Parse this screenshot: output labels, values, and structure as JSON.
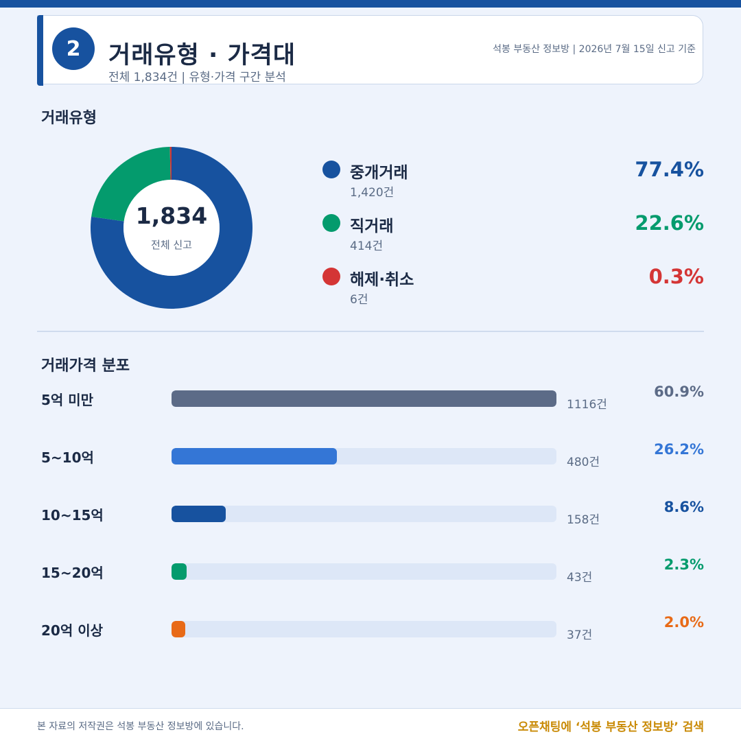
{
  "header": {
    "badge_number": "2",
    "title": "거래유형 · 가격대",
    "subtitle": "전체 1,834건 | 유형·가격 구간 분석",
    "source": "석봉 부동산 정보방 | 2026년 7월 15일 신고 기준"
  },
  "colors": {
    "primary": "#17529f",
    "green": "#049b6d",
    "red": "#d43535",
    "slate": "#5c6b87",
    "blue_mid": "#3476d6",
    "orange": "#e86a17",
    "gold": "#c98a05"
  },
  "chart_data": [
    {
      "type": "pie",
      "title": "거래유형",
      "center_value": "1,834",
      "center_label": "전체 신고",
      "slices": [
        {
          "name": "중개거래",
          "count": 1420,
          "count_label": "1,420건",
          "percent": 77.4,
          "percent_label": "77.4%",
          "color": "#17529f"
        },
        {
          "name": "직거래",
          "count": 414,
          "count_label": "414건",
          "percent": 22.6,
          "percent_label": "22.6%",
          "color": "#049b6d"
        },
        {
          "name": "해제·취소",
          "count": 6,
          "count_label": "6건",
          "percent": 0.3,
          "percent_label": "0.3%",
          "color": "#d43535"
        }
      ]
    },
    {
      "type": "bar",
      "title": "거래가격 분포",
      "categories": [
        "5억 미만",
        "5~10억",
        "10~15억",
        "15~20억",
        "20억 이상"
      ],
      "values": [
        1116,
        480,
        158,
        43,
        37
      ],
      "count_labels": [
        "1116건",
        "480건",
        "158건",
        "43건",
        "37건"
      ],
      "percents": [
        60.9,
        26.2,
        8.6,
        2.3,
        2.0
      ],
      "percent_labels": [
        "60.9%",
        "26.2%",
        "8.6%",
        "2.3%",
        "2.0%"
      ],
      "colors": [
        "#5c6b87",
        "#3476d6",
        "#17529f",
        "#049b6d",
        "#e86a17"
      ],
      "xlim": [
        0,
        1116
      ]
    }
  ],
  "footer": {
    "copyright": "본 자료의 저작권은 석봉 부동산 정보방에 있습니다.",
    "cta": "오픈채팅에 ‘석봉 부동산 정보방’ 검색"
  }
}
